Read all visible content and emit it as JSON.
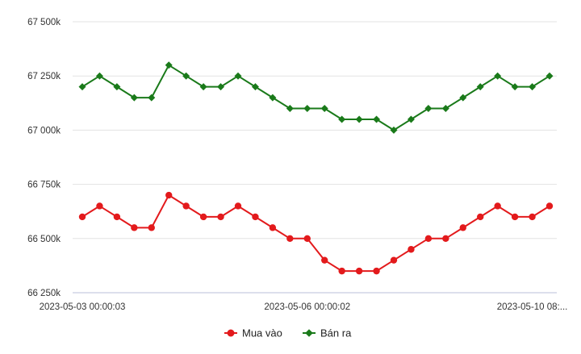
{
  "chart_data": {
    "type": "line",
    "x_tick_labels": [
      "2023-05-03 00:00:03",
      "2023-05-06 00:00:02",
      "2023-05-10 08:..."
    ],
    "x_tick_indices": [
      0,
      13,
      26
    ],
    "y_tick_labels": [
      "67 500k",
      "67 250k",
      "67 000k",
      "66 750k",
      "66 500k",
      "66 250k"
    ],
    "y_tick_values": [
      67500,
      67250,
      67000,
      66750,
      66500,
      66250
    ],
    "ylim": [
      66250,
      67500
    ],
    "grid": "horizontal",
    "legend_position": "bottom-center",
    "series": [
      {
        "name": "Mua vào",
        "color": "#e31a1c",
        "marker": "circle",
        "values": [
          66600,
          66650,
          66600,
          66550,
          66550,
          66700,
          66650,
          66600,
          66600,
          66650,
          66600,
          66550,
          66500,
          66500,
          66400,
          66350,
          66350,
          66350,
          66400,
          66450,
          66500,
          66500,
          66550,
          66600,
          66650,
          66600,
          66600,
          66650
        ]
      },
      {
        "name": "Bán ra",
        "color": "#1a7a1a",
        "marker": "diamond",
        "values": [
          67200,
          67250,
          67200,
          67150,
          67150,
          67300,
          67250,
          67200,
          67200,
          67250,
          67200,
          67150,
          67100,
          67100,
          67100,
          67050,
          67050,
          67050,
          67000,
          67050,
          67100,
          67100,
          67150,
          67200,
          67250,
          67200,
          67200,
          67250
        ]
      }
    ]
  }
}
